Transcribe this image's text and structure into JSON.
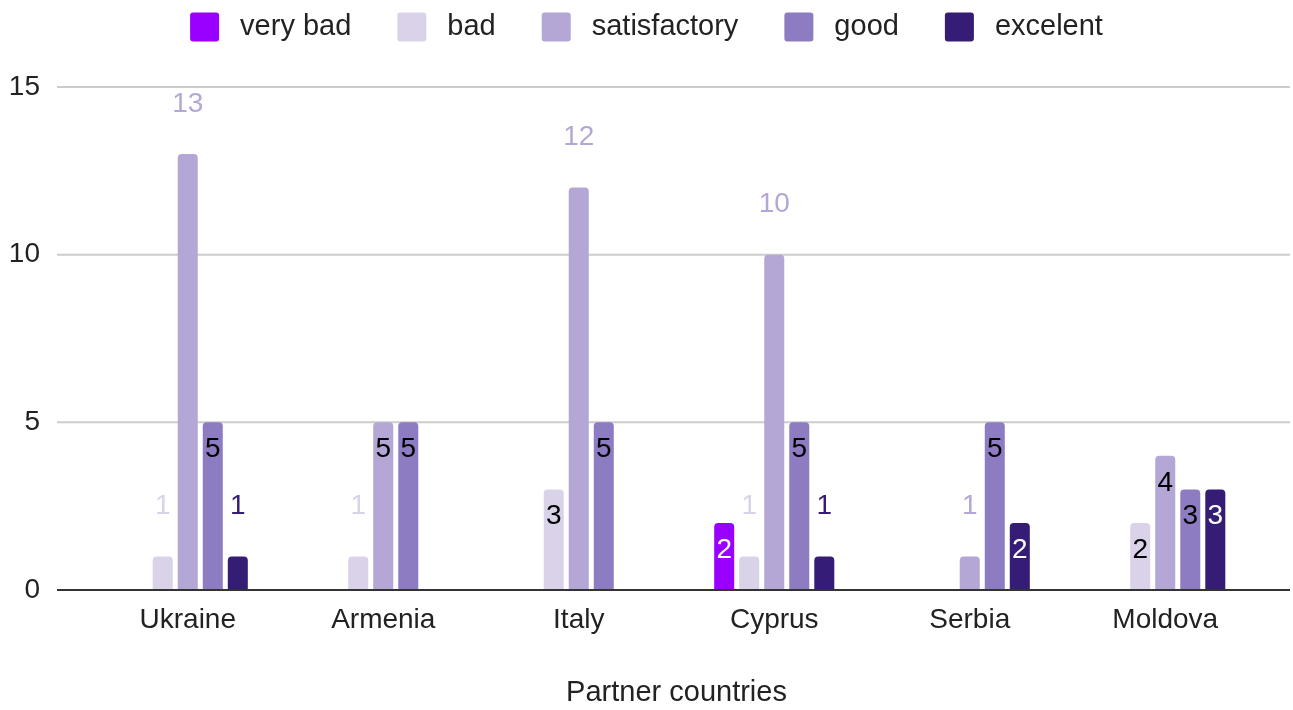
{
  "chart_data": {
    "type": "bar",
    "xlabel": "Partner countries",
    "categories": [
      "Ukraine",
      "Armenia",
      "Italy",
      "Cyprus",
      "Serbia",
      "Moldova"
    ],
    "series": [
      {
        "name": "very bad",
        "color": "#9900ff",
        "values": [
          null,
          null,
          null,
          2,
          null,
          null
        ]
      },
      {
        "name": "bad",
        "color": "#d9d2e9",
        "values": [
          1,
          1,
          3,
          1,
          null,
          2
        ]
      },
      {
        "name": "satisfactory",
        "color": "#b4a7d6",
        "values": [
          13,
          5,
          12,
          10,
          1,
          4
        ]
      },
      {
        "name": "good",
        "color": "#8e7cc3",
        "values": [
          5,
          5,
          5,
          5,
          5,
          3
        ]
      },
      {
        "name": "excelent",
        "color": "#351c75",
        "values": [
          1,
          null,
          null,
          1,
          2,
          3
        ]
      }
    ],
    "ylim": [
      0,
      15
    ],
    "yticks": [
      0,
      5,
      10,
      15
    ],
    "grid": "y",
    "legend": "top",
    "data_labels": true
  }
}
